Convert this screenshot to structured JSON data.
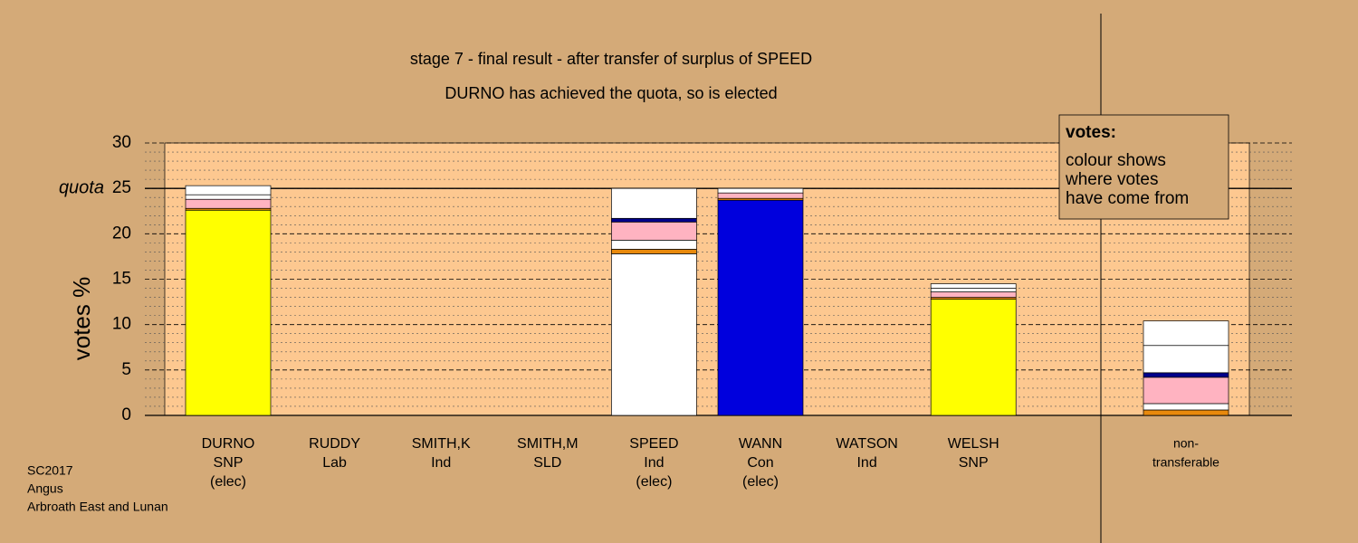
{
  "chart_data": {
    "type": "stacked_bar",
    "title": "stage 7 - final result - after transfer of surplus of SPEED",
    "subtitle": "DURNO has achieved the quota, so is elected",
    "y_label": "votes %",
    "categories": [
      [
        "DURNO",
        "SNP",
        "(elec)"
      ],
      [
        "RUDDY",
        "Lab"
      ],
      [
        "SMITH,K",
        "Ind"
      ],
      [
        "SMITH,M",
        "SLD"
      ],
      [
        "SPEED",
        "Ind",
        "(elec)"
      ],
      [
        "WANN",
        "Con",
        "(elec)"
      ],
      [
        "WATSON",
        "Ind"
      ],
      [
        "WELSH",
        "SNP"
      ],
      [
        "non-",
        "transferable"
      ]
    ],
    "series": [
      {
        "color": "#ffff00",
        "values": [
          22.6,
          0,
          0,
          0,
          0,
          0,
          0,
          12.8,
          0
        ]
      },
      {
        "color": "#ffffff",
        "values": [
          0,
          0,
          0,
          0,
          17.8,
          0,
          0,
          0,
          0
        ]
      },
      {
        "color": "#0000dd",
        "values": [
          0,
          0,
          0,
          0,
          0,
          23.7,
          0,
          0,
          0
        ]
      },
      {
        "color": "#e8890c",
        "values": [
          0.2,
          0,
          0,
          0,
          0.5,
          0.2,
          0,
          0.2,
          0.6
        ]
      },
      {
        "color": "#ffffff",
        "values": [
          0,
          0,
          0,
          0,
          1.0,
          0,
          0,
          0,
          0.7
        ]
      },
      {
        "color": "#ffb3c1",
        "values": [
          1.0,
          0,
          0,
          0,
          2.0,
          0.6,
          0,
          0.6,
          2.9
        ]
      },
      {
        "color": "#00008b",
        "values": [
          0,
          0,
          0,
          0,
          0.4,
          0,
          0,
          0,
          0.5
        ]
      },
      {
        "color": "#ffffff",
        "values": [
          0.5,
          0,
          0,
          0,
          3.3,
          0.5,
          0,
          0.4,
          3.0
        ]
      },
      {
        "color": "#ffffff",
        "values": [
          1.0,
          0,
          0,
          0,
          0,
          0,
          0,
          0.5,
          2.7
        ]
      }
    ],
    "ylim": [
      0,
      30
    ],
    "yticks": [
      0,
      5,
      10,
      15,
      20,
      25,
      30
    ],
    "yminor": [
      1,
      2,
      3,
      4,
      6,
      7,
      8,
      9,
      11,
      12,
      13,
      14,
      16,
      17,
      18,
      19,
      21,
      22,
      23,
      24,
      26,
      27,
      28,
      29
    ],
    "quota": {
      "value": 25,
      "label": "quota"
    },
    "legend": {
      "title": "votes:",
      "lines": [
        "colour shows",
        "where votes",
        "have come from"
      ]
    },
    "footer": [
      "SC2017",
      "Angus",
      "Arbroath East and Lunan"
    ]
  }
}
